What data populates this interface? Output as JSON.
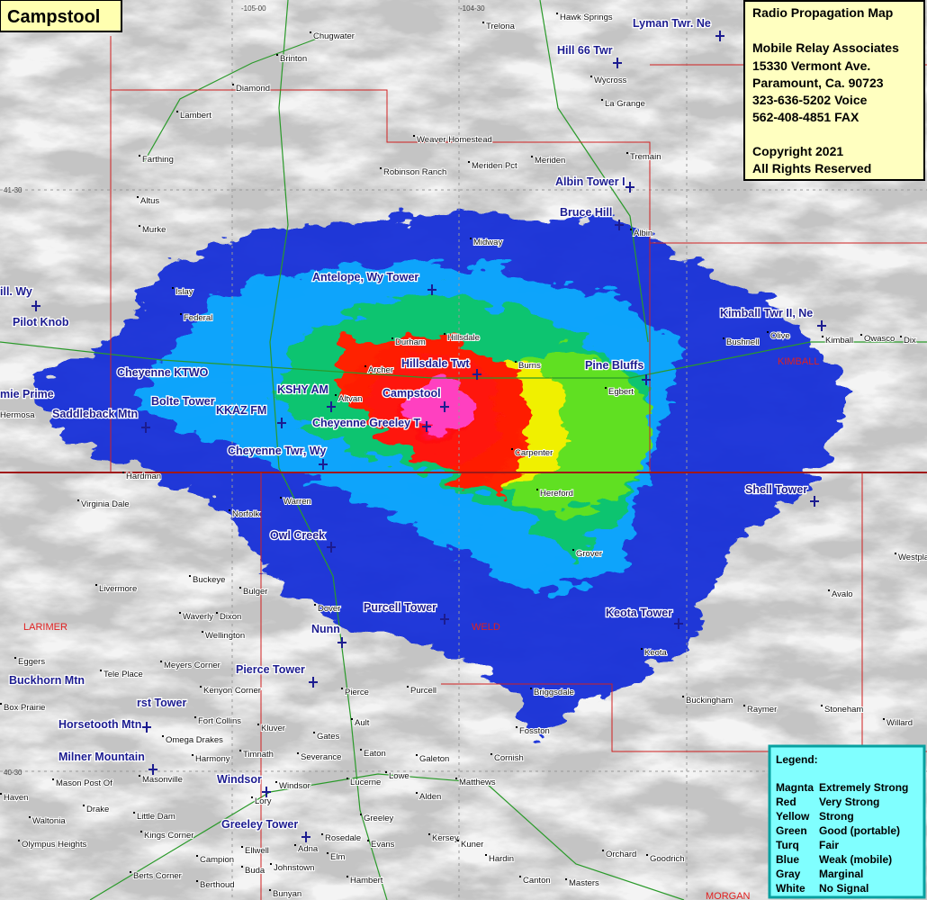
{
  "title": "Campstool",
  "info_box": {
    "lines": [
      "Radio Propagation Map",
      "Mobile Relay Associates",
      "15330 Vermont Ave.",
      "Paramount, Ca. 90723",
      "323-636-5202 Voice",
      "562-408-4851 FAX",
      "Copyright 2021",
      "All Rights Reserved"
    ]
  },
  "legend": {
    "title": "Legend:",
    "rows": [
      [
        "Magnta",
        "Extremely Strong"
      ],
      [
        "Red",
        "Very Strong"
      ],
      [
        "Yellow",
        "Strong"
      ],
      [
        "Green",
        "Good (portable)"
      ],
      [
        "Turq",
        "Fair"
      ],
      [
        "Blue",
        "Weak (mobile)"
      ],
      [
        "Gray",
        "Marginal"
      ],
      [
        "White",
        "No Signal"
      ]
    ]
  },
  "grid_labels": [
    "-105-00",
    "-104-30",
    "41-30",
    "40-30"
  ],
  "counties": [
    "LARIMER",
    "WELD",
    "KIMBALL",
    "MORGAN"
  ],
  "towers": [
    "Lyman Twr. Ne",
    "Hill 66 Twr",
    "Albin Tower I",
    "Bruce Hill",
    "Antelope, Wy Tower",
    "Kimball Twr II, Ne",
    "ill. Wy",
    "Pilot Knob",
    "Hillsdale Twt",
    "Pine Bluffs",
    "Cheyenne KTWO",
    "mie Prime",
    "KSHY AM",
    "Campstool",
    "Bolte Tower",
    "Saddleback Mtn",
    "KKAZ FM",
    "Cheyenne Greeley T",
    "Cheyenne Twr, Wy",
    "Shell Tower",
    "Owl Creek",
    "Purcell Tower",
    "Keota Tower",
    "Nunn",
    "Pierce Tower",
    "Buckhorn Mtn",
    "rst Tower",
    "Horsetooth Mtn",
    "Milner Mountain",
    "Windsor",
    "Greeley Tower"
  ],
  "places": [
    "Trelona",
    "Hawk Springs",
    "Chugwater",
    "Brinton",
    "Diamond",
    "Lambert",
    "Wycross",
    "La Grange",
    "Weaver Homestead",
    "Farthing",
    "Robinson Ranch",
    "Meriden Pct",
    "Meriden",
    "Tremain",
    "Altus",
    "Murke",
    "Albin",
    "Midway",
    "Islay",
    "Federal",
    "Durham",
    "Hillsdale",
    "Archer",
    "Burns",
    "Bushnell",
    "Olive",
    "Kimball",
    "Owasco",
    "Dix",
    "Altvan",
    "Egbert",
    "Carpenter",
    "Hereford",
    "Hermosa",
    "Warren",
    "Norfolk",
    "Hardman",
    "Virginia Dale",
    "Grover",
    "Westplains",
    "Avalo",
    "Buckeye",
    "Bulger",
    "Livermore",
    "Dover",
    "Waverly",
    "Dixon",
    "Wellington",
    "Eggers",
    "Meyers Corner",
    "Tele Place",
    "Kenyon Corner",
    "Pierce",
    "Purcell",
    "Briggsdale",
    "Keota",
    "Buckingham",
    "Raymer",
    "Stoneham",
    "Willard",
    "Box Prairie",
    "Fort Collins",
    "Kluver",
    "Ault",
    "Gates",
    "Omega Drakes",
    "Timnath",
    "Harmony",
    "Severance",
    "Eaton",
    "Galeton",
    "Cornish",
    "Fosston",
    "Masonville",
    "Mason Post Of",
    "Lory",
    "Windsor",
    "Lucerne",
    "Lowe",
    "Matthews",
    "Alden",
    "Greeley",
    "Kersey",
    "Kuner",
    "Evans",
    "Rosedale",
    "Adna",
    "Elm",
    "Ellwell",
    "Campion",
    "Buda",
    "Johnstown",
    "Berthoud",
    "Bunyan",
    "Hambert",
    "Hardin",
    "Canton",
    "Masters",
    "Orchard",
    "Goodrich",
    "Little Dam",
    "Kings Corner",
    "Waltonia",
    "Olympus Heights",
    "Berts Corner",
    "Drake",
    "Haven"
  ]
}
